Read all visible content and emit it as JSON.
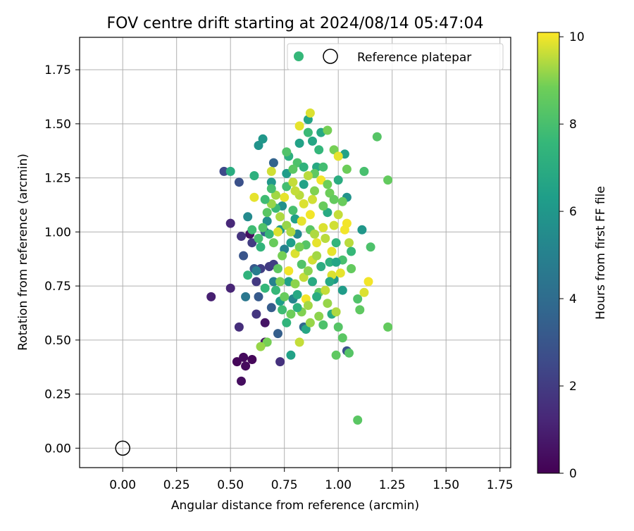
{
  "chart_data": {
    "type": "scatter",
    "title": "FOV centre drift starting at 2024/08/14 05:47:04",
    "xlabel": "Angular distance from reference (arcmin)",
    "ylabel": "Rotation from reference (arcmin)",
    "xlim": [
      -0.2,
      1.8
    ],
    "ylim": [
      -0.09,
      1.9
    ],
    "xticks": [
      "0.00",
      "0.25",
      "0.50",
      "0.75",
      "1.00",
      "1.25",
      "1.50",
      "1.75"
    ],
    "yticks": [
      "0.00",
      "0.25",
      "0.50",
      "0.75",
      "1.00",
      "1.25",
      "1.50",
      "1.75"
    ],
    "grid": true,
    "legend": {
      "placement": "top-right",
      "entries": [
        "",
        "Reference platepar"
      ]
    },
    "colorbar": {
      "label": "Hours from first FF file",
      "min": 0,
      "max": 10.1,
      "ticks": [
        "0",
        "2",
        "4",
        "6",
        "8",
        "10"
      ],
      "colormap": "viridis"
    },
    "reference_point": {
      "x": 0.0,
      "y": 0.0,
      "style": "open-circle",
      "color": "#000000"
    },
    "series": [
      {
        "points": [
          [
            0.53,
            0.4,
            0.2
          ],
          [
            0.56,
            0.42,
            0.3
          ],
          [
            0.57,
            0.38,
            0.3
          ],
          [
            0.6,
            0.41,
            0.2
          ],
          [
            0.55,
            0.31,
            0.4
          ],
          [
            0.59,
            0.99,
            0.5
          ],
          [
            0.66,
            0.58,
            0.6
          ],
          [
            0.66,
            0.49,
            0.6
          ],
          [
            0.41,
            0.7,
            1.0
          ],
          [
            0.5,
            0.74,
            1.2
          ],
          [
            0.5,
            1.04,
            1.3
          ],
          [
            0.54,
            0.56,
            1.5
          ],
          [
            0.55,
            0.98,
            1.7
          ],
          [
            0.73,
            0.4,
            1.6
          ],
          [
            0.62,
            0.62,
            1.8
          ],
          [
            0.62,
            0.77,
            1.9
          ],
          [
            0.6,
            0.95,
            2.0
          ],
          [
            0.68,
            0.84,
            2.0
          ],
          [
            0.64,
            0.83,
            2.1
          ],
          [
            0.7,
            0.85,
            2.1
          ],
          [
            0.47,
            1.28,
            2.5
          ],
          [
            0.54,
            1.23,
            2.8
          ],
          [
            0.56,
            0.89,
            3.0
          ],
          [
            0.61,
            0.83,
            3.1
          ],
          [
            0.63,
            0.7,
            3.2
          ],
          [
            0.69,
            0.65,
            3.3
          ],
          [
            0.72,
            0.53,
            3.4
          ],
          [
            0.66,
            1.0,
            3.5
          ],
          [
            0.7,
            1.32,
            3.6
          ],
          [
            0.84,
            0.56,
            3.8
          ],
          [
            1.04,
            0.45,
            2.9
          ],
          [
            0.57,
            0.7,
            4.5
          ],
          [
            0.62,
            0.82,
            4.8
          ],
          [
            0.7,
            0.77,
            5.0
          ],
          [
            0.75,
            0.92,
            5.0
          ],
          [
            0.79,
            0.69,
            5.2
          ],
          [
            0.81,
            0.99,
            5.3
          ],
          [
            0.58,
            1.07,
            5.4
          ],
          [
            0.67,
            1.05,
            5.6
          ],
          [
            0.74,
            1.12,
            5.7
          ],
          [
            0.63,
            1.4,
            5.8
          ],
          [
            0.65,
            1.43,
            6.0
          ],
          [
            0.69,
            1.23,
            6.0
          ],
          [
            0.73,
            1.01,
            6.1
          ],
          [
            0.76,
            1.27,
            6.2
          ],
          [
            0.78,
            0.95,
            6.3
          ],
          [
            0.8,
            1.06,
            6.4
          ],
          [
            0.82,
            1.41,
            6.5
          ],
          [
            0.84,
            1.22,
            6.5
          ],
          [
            0.86,
            1.52,
            6.6
          ],
          [
            0.88,
            1.42,
            6.7
          ],
          [
            0.9,
            1.3,
            6.8
          ],
          [
            0.92,
            1.46,
            6.8
          ],
          [
            0.95,
            1.09,
            6.9
          ],
          [
            1.0,
            1.24,
            7.0
          ],
          [
            1.03,
            1.36,
            6.5
          ],
          [
            1.04,
            1.16,
            5.8
          ],
          [
            1.11,
            1.01,
            6.0
          ],
          [
            0.98,
            0.78,
            6.1
          ],
          [
            1.02,
            0.73,
            6.2
          ],
          [
            0.73,
            0.68,
            6.3
          ],
          [
            0.77,
            0.77,
            6.4
          ],
          [
            0.78,
            0.43,
            6.5
          ],
          [
            0.85,
            0.55,
            6.7
          ],
          [
            0.97,
            0.62,
            6.9
          ],
          [
            0.5,
            1.28,
            7.0
          ],
          [
            0.61,
            1.26,
            7.2
          ],
          [
            0.58,
            0.8,
            7.3
          ],
          [
            0.64,
            0.93,
            7.4
          ],
          [
            0.66,
            0.74,
            7.5
          ],
          [
            0.68,
            0.99,
            7.6
          ],
          [
            0.71,
            1.11,
            7.7
          ],
          [
            0.74,
            0.64,
            7.8
          ],
          [
            0.76,
            1.21,
            7.9
          ],
          [
            0.79,
            1.1,
            8.0
          ],
          [
            0.81,
            1.32,
            8.1
          ],
          [
            0.83,
            0.85,
            8.2
          ],
          [
            0.85,
            0.94,
            8.3
          ],
          [
            0.87,
            1.01,
            8.4
          ],
          [
            0.89,
            1.27,
            8.5
          ],
          [
            0.91,
            0.72,
            8.6
          ],
          [
            0.93,
            1.12,
            8.7
          ],
          [
            0.96,
            1.18,
            8.8
          ],
          [
            0.99,
            0.43,
            8.5
          ],
          [
            1.02,
            0.51,
            8.4
          ],
          [
            1.05,
            0.44,
            8.3
          ],
          [
            1.06,
            0.83,
            8.6
          ],
          [
            1.09,
            0.69,
            8.2
          ],
          [
            1.1,
            0.64,
            8.5
          ],
          [
            1.12,
            1.28,
            8.0
          ],
          [
            1.15,
            0.93,
            8.1
          ],
          [
            1.18,
            1.44,
            8.3
          ],
          [
            1.23,
            1.24,
            8.6
          ],
          [
            1.23,
            0.56,
            8.6
          ],
          [
            1.09,
            0.13,
            8.4
          ],
          [
            1.04,
            1.29,
            8.8
          ],
          [
            1.02,
            1.14,
            8.7
          ],
          [
            0.98,
            1.38,
            8.9
          ],
          [
            0.95,
            1.47,
            8.9
          ],
          [
            0.67,
            0.49,
            8.9
          ],
          [
            0.64,
            0.47,
            9.2
          ],
          [
            0.82,
            0.49,
            9.6
          ],
          [
            0.87,
            1.55,
            9.8
          ],
          [
            0.82,
            1.49,
            9.9
          ],
          [
            0.61,
            1.16,
            9.9
          ],
          [
            0.69,
            1.28,
            9.7
          ],
          [
            0.72,
            1.0,
            9.8
          ],
          [
            0.75,
            1.16,
            9.9
          ],
          [
            0.77,
            0.82,
            10.0
          ],
          [
            0.8,
            0.9,
            9.8
          ],
          [
            0.83,
            1.05,
            9.9
          ],
          [
            0.85,
            0.69,
            10.0
          ],
          [
            0.88,
            1.15,
            9.7
          ],
          [
            0.9,
            0.95,
            9.9
          ],
          [
            0.92,
            1.24,
            10.0
          ],
          [
            0.94,
            0.73,
            9.6
          ],
          [
            0.97,
            0.8,
            9.8
          ],
          [
            1.0,
            1.35,
            9.9
          ],
          [
            1.03,
            1.01,
            10.0
          ],
          [
            1.05,
            0.95,
            9.5
          ],
          [
            1.12,
            0.72,
            9.8
          ],
          [
            1.14,
            0.77,
            10.0
          ],
          [
            0.99,
            0.63,
            9.4
          ],
          [
            0.86,
            0.66,
            9.3
          ],
          [
            0.8,
            0.76,
            9.1
          ],
          [
            0.76,
            1.03,
            9.2
          ],
          [
            0.73,
            0.77,
            9.0
          ],
          [
            0.71,
            1.17,
            9.3
          ],
          [
            0.78,
            1.0,
            9.4
          ],
          [
            0.82,
            1.17,
            9.5
          ],
          [
            0.84,
            0.79,
            9.6
          ],
          [
            0.88,
            0.87,
            9.7
          ],
          [
            0.93,
            1.02,
            9.8
          ],
          [
            0.97,
            0.91,
            9.9
          ],
          [
            1.0,
            1.08,
            9.6
          ],
          [
            0.91,
            0.61,
            9.1
          ],
          [
            0.95,
            0.67,
            9.2
          ],
          [
            0.89,
            0.99,
            9.4
          ],
          [
            0.86,
            1.26,
            9.5
          ],
          [
            0.79,
            1.23,
            9.6
          ],
          [
            0.74,
            0.89,
            8.9
          ],
          [
            0.7,
            0.95,
            8.7
          ],
          [
            0.67,
            1.09,
            8.4
          ],
          [
            0.65,
            1.02,
            8.2
          ],
          [
            0.63,
            0.97,
            8.0
          ],
          [
            0.6,
            1.01,
            7.8
          ],
          [
            0.77,
            1.35,
            7.1
          ],
          [
            0.84,
            1.3,
            7.3
          ],
          [
            0.91,
            1.38,
            7.5
          ],
          [
            0.86,
            1.46,
            7.7
          ],
          [
            0.93,
            1.3,
            7.9
          ],
          [
            1.02,
            0.87,
            8.0
          ],
          [
            1.06,
            0.91,
            7.6
          ],
          [
            0.99,
            0.95,
            7.4
          ],
          [
            0.96,
            0.86,
            7.2
          ],
          [
            0.92,
            0.84,
            7.0
          ],
          [
            0.88,
            0.77,
            6.9
          ],
          [
            0.81,
            0.71,
            6.8
          ],
          [
            0.78,
            0.62,
            8.8
          ],
          [
            0.83,
            0.63,
            9.0
          ],
          [
            0.87,
            0.58,
            9.2
          ],
          [
            0.93,
            0.57,
            8.1
          ],
          [
            1.0,
            0.56,
            8.3
          ],
          [
            0.72,
            0.83,
            8.5
          ],
          [
            0.75,
            0.7,
            8.7
          ],
          [
            0.82,
            0.93,
            8.9
          ],
          [
            0.86,
            0.82,
            9.1
          ],
          [
            0.9,
            0.89,
            9.3
          ],
          [
            0.94,
            0.97,
            9.5
          ],
          [
            0.98,
            1.03,
            9.7
          ],
          [
            1.01,
            0.81,
            9.9
          ],
          [
            1.04,
            1.04,
            10.0
          ],
          [
            0.87,
            1.08,
            10.0
          ],
          [
            0.84,
            1.13,
            9.8
          ],
          [
            0.8,
            1.19,
            9.6
          ],
          [
            0.73,
            1.07,
            9.4
          ],
          [
            0.69,
            1.13,
            9.2
          ],
          [
            0.89,
            1.19,
            9.0
          ],
          [
            0.95,
            1.22,
            8.8
          ],
          [
            0.98,
            1.15,
            8.6
          ],
          [
            0.79,
            1.29,
            8.4
          ],
          [
            0.76,
            1.37,
            8.2
          ],
          [
            0.69,
            1.2,
            8.0
          ],
          [
            0.66,
            1.15,
            7.8
          ],
          [
            0.71,
            0.73,
            7.6
          ],
          [
            0.76,
            0.58,
            7.4
          ],
          [
            0.81,
            0.65,
            7.2
          ],
          [
            0.9,
            0.7,
            7.0
          ],
          [
            0.96,
            0.77,
            6.8
          ],
          [
            0.99,
            0.86,
            6.6
          ]
        ]
      }
    ]
  }
}
